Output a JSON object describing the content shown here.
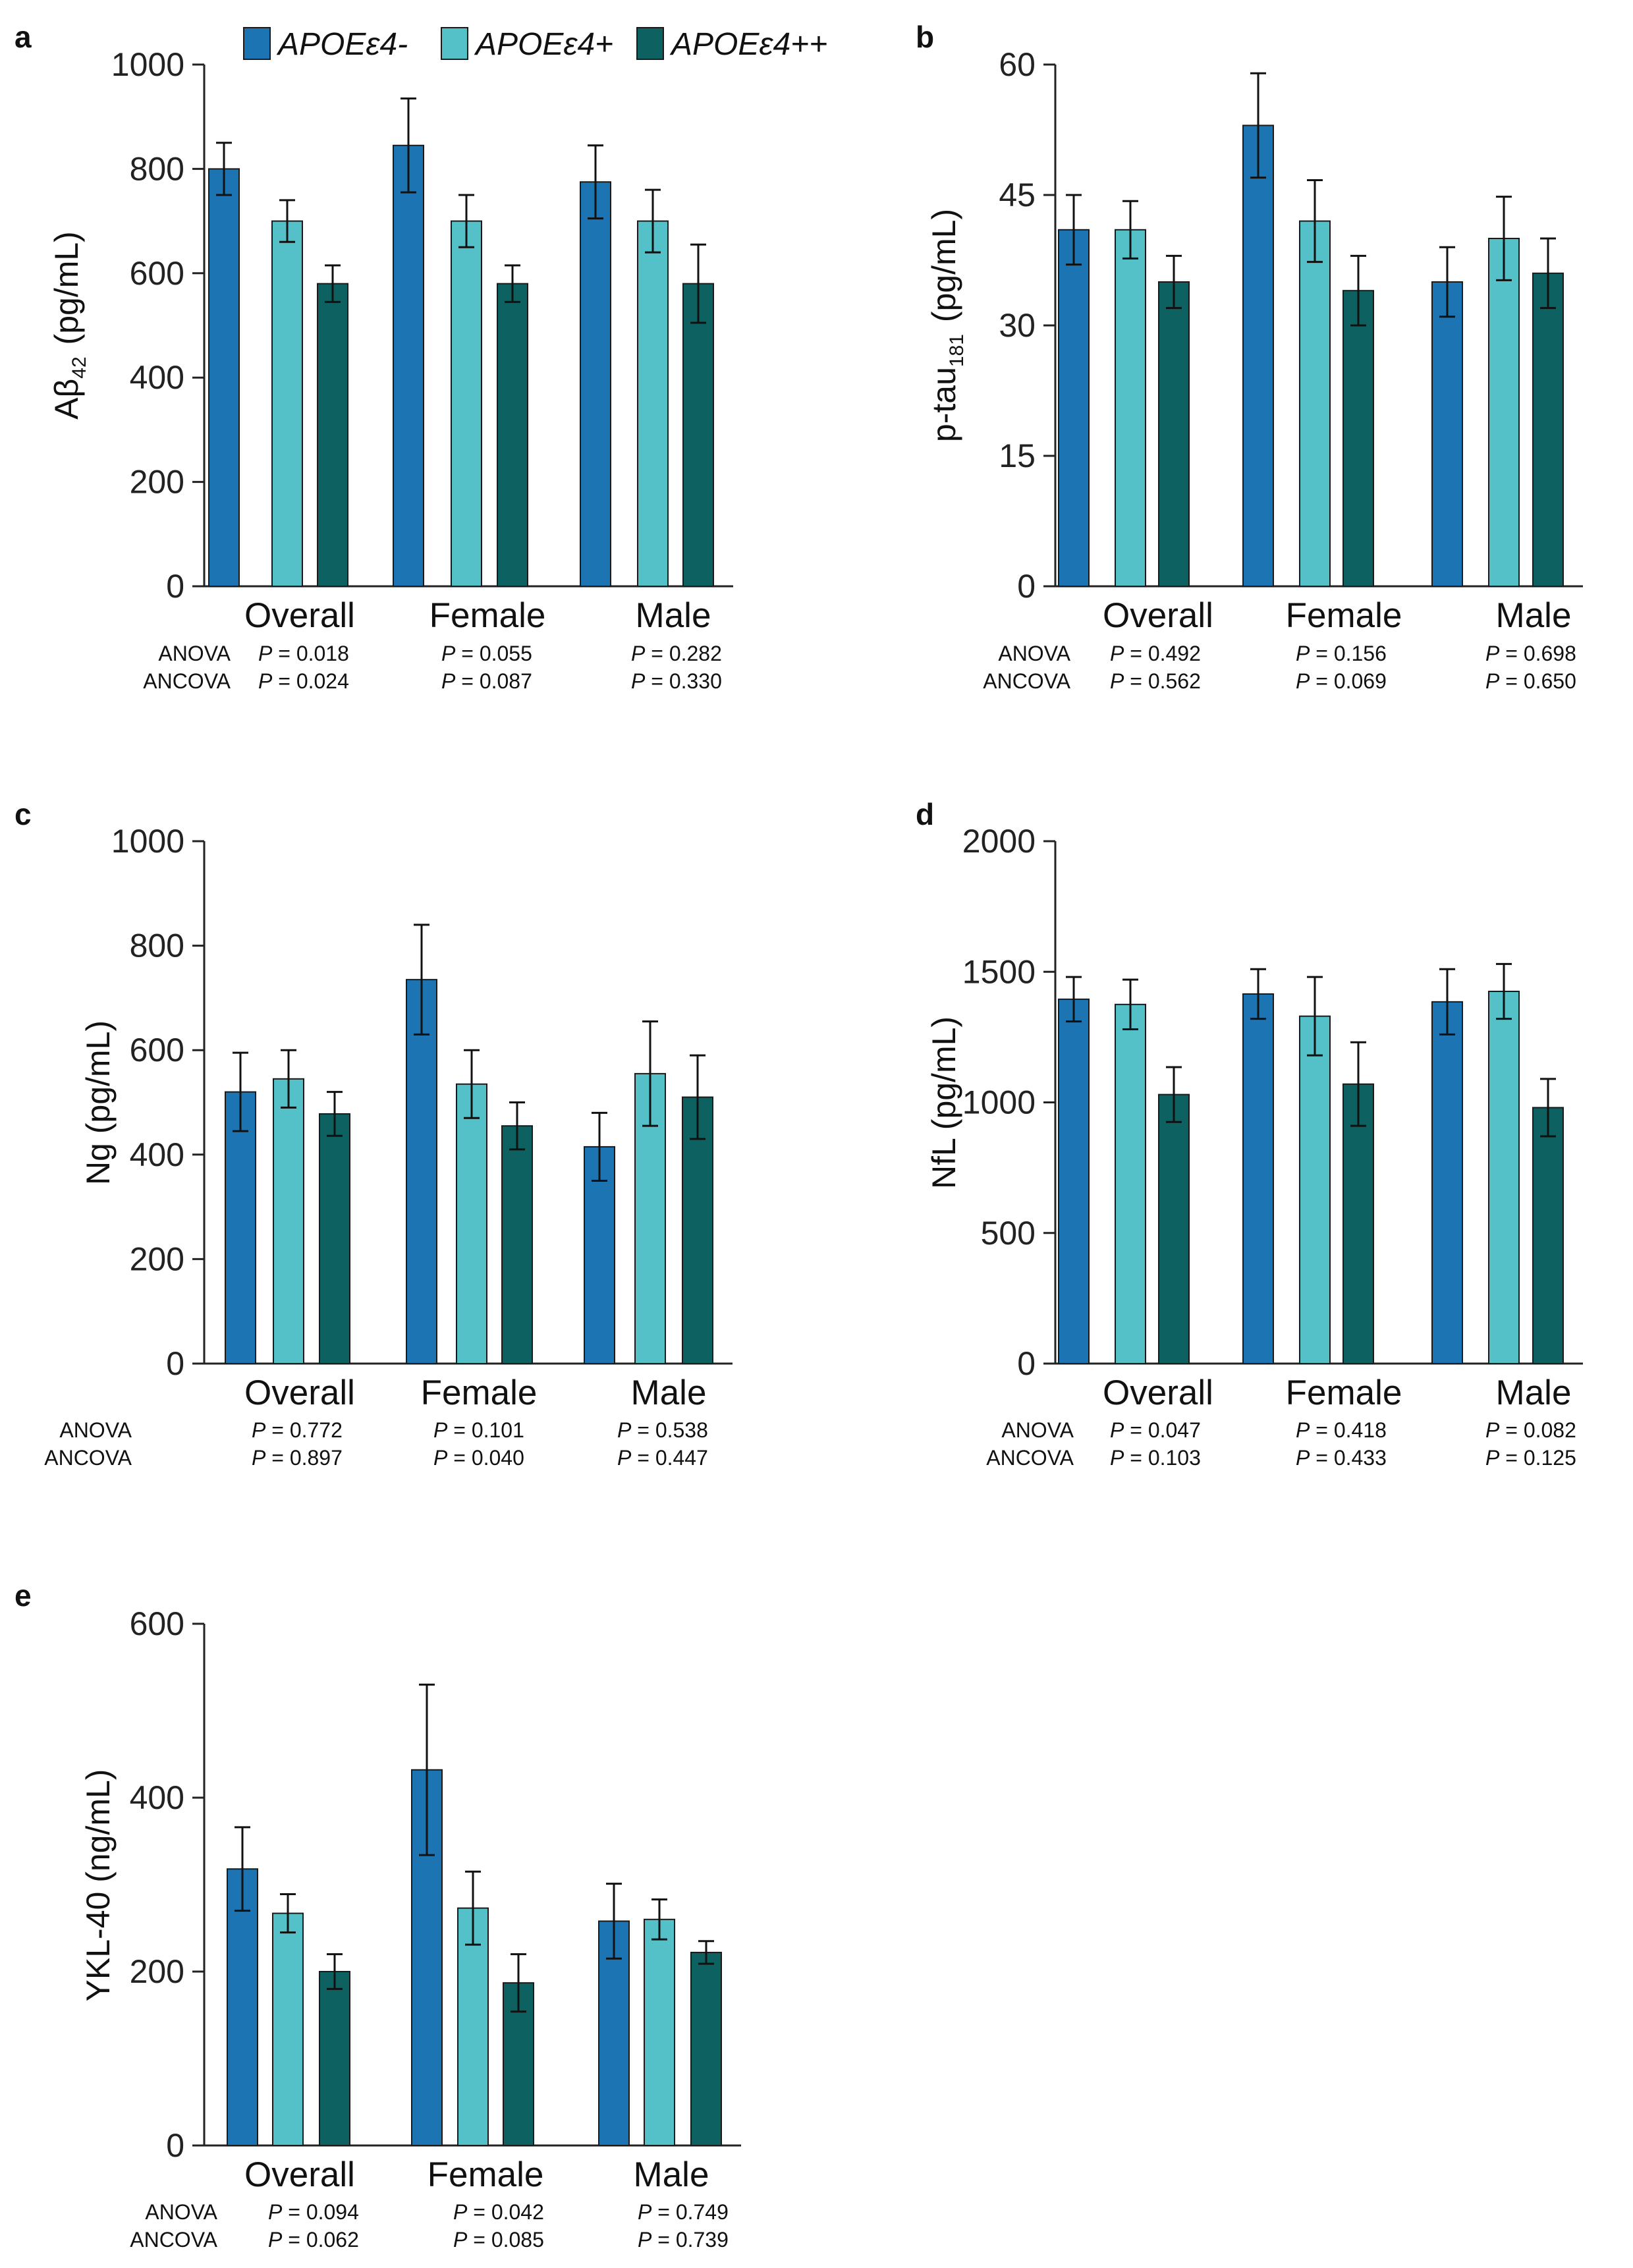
{
  "colors": {
    "series": [
      "#1c75b2",
      "#54c1c9",
      "#0d6261"
    ],
    "significant": "#e8202f",
    "normal_text": "#111111",
    "axis": "#222222"
  },
  "legend": {
    "entries": [
      "APOEε4-",
      "APOEε4+",
      "APOEε4++"
    ]
  },
  "stat_row_labels": [
    "ANOVA",
    "ANCOVA"
  ],
  "chart_data": [
    {
      "panel": "a",
      "type": "bar",
      "ylabel_main": "Aβ",
      "ylabel_sub": "42",
      "ylabel_unit": " (pg/mL)",
      "ylim": [
        0,
        1000
      ],
      "yticks": [
        0,
        200,
        400,
        600,
        800,
        1000
      ],
      "yticklabels": [
        "0",
        "200",
        "400",
        "600",
        "800",
        "1000"
      ],
      "categories": [
        "Overall",
        "Female",
        "Male"
      ],
      "series": [
        {
          "name": "APOEε4-",
          "values": [
            800,
            845,
            775
          ],
          "errors": [
            50,
            90,
            70
          ]
        },
        {
          "name": "APOEε4+",
          "values": [
            700,
            700,
            700
          ],
          "errors": [
            40,
            50,
            60
          ]
        },
        {
          "name": "APOEε4++",
          "values": [
            580,
            580,
            580
          ],
          "errors": [
            35,
            35,
            75
          ]
        }
      ],
      "stats": {
        "anova": [
          {
            "text": "= 0.018",
            "sig": true
          },
          {
            "text": "= 0.055",
            "sig": false
          },
          {
            "text": "= 0.282",
            "sig": false
          }
        ],
        "ancova": [
          {
            "text": "= 0.024",
            "sig": true
          },
          {
            "text": "= 0.087",
            "sig": false
          },
          {
            "text": "= 0.330",
            "sig": false
          }
        ]
      }
    },
    {
      "panel": "b",
      "type": "bar",
      "ylabel_main": "p-tau",
      "ylabel_sub": "181",
      "ylabel_unit": " (pg/mL)",
      "ylim": [
        0,
        60
      ],
      "yticks": [
        0,
        15,
        30,
        45,
        60
      ],
      "yticklabels": [
        "0",
        "15",
        "30",
        "45",
        "60"
      ],
      "categories": [
        "Overall",
        "Female",
        "Male"
      ],
      "series": [
        {
          "name": "APOEε4-",
          "values": [
            41,
            53,
            35
          ],
          "errors": [
            4,
            6,
            4
          ]
        },
        {
          "name": "APOEε4+",
          "values": [
            41,
            42,
            40
          ],
          "errors": [
            3.3,
            4.7,
            4.8
          ]
        },
        {
          "name": "APOEε4++",
          "values": [
            35,
            34,
            36
          ],
          "errors": [
            3,
            4,
            4
          ]
        }
      ],
      "stats": {
        "anova": [
          {
            "text": "= 0.492",
            "sig": false
          },
          {
            "text": "= 0.156",
            "sig": false
          },
          {
            "text": "= 0.698",
            "sig": false
          }
        ],
        "ancova": [
          {
            "text": "= 0.562",
            "sig": false
          },
          {
            "text": "= 0.069",
            "sig": false
          },
          {
            "text": "= 0.650",
            "sig": false
          }
        ]
      }
    },
    {
      "panel": "c",
      "type": "bar",
      "ylabel_main": "Ng (pg/mL)",
      "ylabel_sub": "",
      "ylabel_unit": "",
      "ylim": [
        0,
        1000
      ],
      "yticks": [
        0,
        200,
        400,
        600,
        800,
        1000
      ],
      "yticklabels": [
        "0",
        "200",
        "400",
        "600",
        "800",
        "1000"
      ],
      "categories": [
        "Overall",
        "Female",
        "Male"
      ],
      "series": [
        {
          "name": "APOEε4-",
          "values": [
            520,
            735,
            415
          ],
          "errors": [
            75,
            105,
            65
          ]
        },
        {
          "name": "APOEε4+",
          "values": [
            545,
            535,
            555
          ],
          "errors": [
            55,
            65,
            100
          ]
        },
        {
          "name": "APOEε4++",
          "values": [
            478,
            455,
            510
          ],
          "errors": [
            42,
            45,
            80
          ]
        }
      ],
      "stats": {
        "anova": [
          {
            "text": "= 0.772",
            "sig": false
          },
          {
            "text": "= 0.101",
            "sig": false
          },
          {
            "text": "= 0.538",
            "sig": false
          }
        ],
        "ancova": [
          {
            "text": "= 0.897",
            "sig": false
          },
          {
            "text": "= 0.040",
            "sig": true
          },
          {
            "text": "= 0.447",
            "sig": false
          }
        ]
      }
    },
    {
      "panel": "d",
      "type": "bar",
      "ylabel_main": "NfL (pg/mL)",
      "ylabel_sub": "",
      "ylabel_unit": "",
      "ylim": [
        0,
        2000
      ],
      "yticks": [
        0,
        500,
        1000,
        1500,
        2000
      ],
      "yticklabels": [
        "0",
        "500",
        "1000",
        "1500",
        "2000"
      ],
      "categories": [
        "Overall",
        "Female",
        "Male"
      ],
      "series": [
        {
          "name": "APOEε4-",
          "values": [
            1395,
            1415,
            1385
          ],
          "errors": [
            85,
            95,
            125
          ]
        },
        {
          "name": "APOEε4+",
          "values": [
            1375,
            1330,
            1425
          ],
          "errors": [
            95,
            150,
            105
          ]
        },
        {
          "name": "APOEε4++",
          "values": [
            1030,
            1070,
            980
          ],
          "errors": [
            105,
            160,
            110
          ]
        }
      ],
      "stats": {
        "anova": [
          {
            "text": "= 0.047",
            "sig": true
          },
          {
            "text": "= 0.418",
            "sig": false
          },
          {
            "text": "= 0.082",
            "sig": false
          }
        ],
        "ancova": [
          {
            "text": "= 0.103",
            "sig": false
          },
          {
            "text": "= 0.433",
            "sig": false
          },
          {
            "text": "= 0.125",
            "sig": false
          }
        ]
      }
    },
    {
      "panel": "e",
      "type": "bar",
      "ylabel_main": "YKL-40 (ng/mL)",
      "ylabel_sub": "",
      "ylabel_unit": "",
      "ylim": [
        0,
        600
      ],
      "yticks": [
        0,
        200,
        400,
        600
      ],
      "yticklabels": [
        "0",
        "200",
        "400",
        "600"
      ],
      "categories": [
        "Overall",
        "Female",
        "Male"
      ],
      "series": [
        {
          "name": "APOEε4-",
          "values": [
            318,
            432,
            258
          ],
          "errors": [
            48,
            98,
            43
          ]
        },
        {
          "name": "APOEε4+",
          "values": [
            267,
            273,
            260
          ],
          "errors": [
            22,
            42,
            23
          ]
        },
        {
          "name": "APOEε4++",
          "values": [
            200,
            187,
            222
          ],
          "errors": [
            20,
            33,
            13
          ]
        }
      ],
      "stats": {
        "anova": [
          {
            "text": "= 0.094",
            "sig": false
          },
          {
            "text": "= 0.042",
            "sig": true
          },
          {
            "text": "= 0.749",
            "sig": false
          }
        ],
        "ancova": [
          {
            "text": "= 0.062",
            "sig": false
          },
          {
            "text": "= 0.085",
            "sig": false
          },
          {
            "text": "= 0.739",
            "sig": false
          }
        ]
      }
    }
  ]
}
